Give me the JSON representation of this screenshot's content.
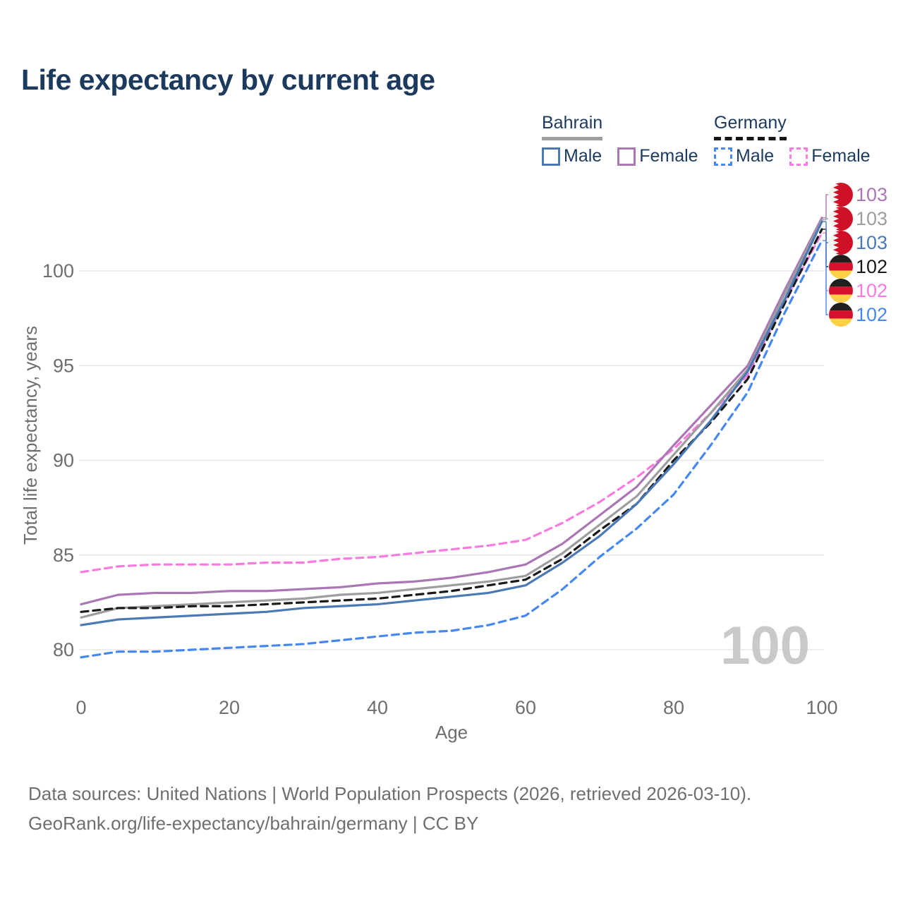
{
  "title": "Life expectancy by current age",
  "legend": {
    "bahrain": {
      "label": "Bahrain",
      "male": "Male",
      "female": "Female",
      "male_color": "#4a79b5",
      "female_color": "#aa77b4",
      "underline_color": "#9e9e9e"
    },
    "germany": {
      "label": "Germany",
      "male": "Male",
      "female": "Female",
      "male_color": "#4688f1",
      "female_color": "#fb7ae0",
      "underline_color": "#161616"
    }
  },
  "chart_data": {
    "type": "line",
    "x": [
      0,
      5,
      10,
      15,
      20,
      25,
      30,
      35,
      40,
      45,
      50,
      55,
      60,
      65,
      70,
      75,
      80,
      85,
      90,
      95,
      100
    ],
    "xlabel": "Age",
    "ylabel": "Total life expectancy, years",
    "xlim": [
      0,
      100
    ],
    "ylim": [
      78.5,
      103.5
    ],
    "xticks": [
      "0",
      "20",
      "40",
      "60",
      "80",
      "100"
    ],
    "yticks": [
      "80",
      "85",
      "90",
      "95",
      "100"
    ],
    "grid": "horizontal",
    "legend_position": "top-right",
    "watermark": "100",
    "series": [
      {
        "name": "Germany Female",
        "country": "Germany",
        "sex": "Female",
        "flag": "germany",
        "color": "#fb7ae0",
        "dashed": true,
        "end_label": "102",
        "end_row": 4,
        "values": [
          84.1,
          84.4,
          84.5,
          84.5,
          84.5,
          84.6,
          84.6,
          84.8,
          84.9,
          85.1,
          85.3,
          85.5,
          85.8,
          86.7,
          87.8,
          89.1,
          90.6,
          92.5,
          94.5,
          98.4,
          102.0
        ]
      },
      {
        "name": "Bahrain Female",
        "country": "Bahrain",
        "sex": "Female",
        "flag": "bahrain",
        "color": "#aa77b4",
        "dashed": false,
        "end_label": "103",
        "end_row": 0,
        "values": [
          82.4,
          82.9,
          83.0,
          83.0,
          83.1,
          83.1,
          83.2,
          83.3,
          83.5,
          83.6,
          83.8,
          84.1,
          84.5,
          85.6,
          87.1,
          88.6,
          90.8,
          92.9,
          95.0,
          99.0,
          102.8
        ]
      },
      {
        "name": "Bahrain Both sexes",
        "country": "Bahrain",
        "sex": "Both",
        "flag": "bahrain",
        "color": "#9e9e9e",
        "dashed": false,
        "end_label": "103",
        "end_row": 1,
        "values": [
          81.7,
          82.2,
          82.3,
          82.4,
          82.5,
          82.6,
          82.7,
          82.9,
          83.0,
          83.2,
          83.4,
          83.6,
          83.9,
          85.1,
          86.6,
          88.1,
          90.3,
          92.5,
          94.8,
          98.8,
          102.7
        ]
      },
      {
        "name": "Germany Both sexes",
        "country": "Germany",
        "sex": "Both",
        "flag": "germany",
        "color": "#1a1a1a",
        "dashed": true,
        "end_label": "102",
        "end_row": 3,
        "values": [
          82.0,
          82.2,
          82.2,
          82.3,
          82.3,
          82.4,
          82.5,
          82.6,
          82.7,
          82.9,
          83.1,
          83.4,
          83.7,
          84.8,
          86.3,
          87.7,
          90.0,
          92.0,
          94.3,
          98.3,
          102.2
        ]
      },
      {
        "name": "Bahrain Male",
        "country": "Bahrain",
        "sex": "Male",
        "flag": "bahrain",
        "color": "#4a79b5",
        "dashed": false,
        "end_label": "103",
        "end_row": 2,
        "values": [
          81.3,
          81.6,
          81.7,
          81.8,
          81.9,
          82.0,
          82.2,
          82.3,
          82.4,
          82.6,
          82.8,
          83.0,
          83.4,
          84.6,
          86.0,
          87.7,
          89.8,
          92.1,
          94.7,
          98.5,
          102.6
        ]
      },
      {
        "name": "Germany Male",
        "country": "Germany",
        "sex": "Male",
        "flag": "germany",
        "color": "#4688f1",
        "dashed": true,
        "end_label": "102",
        "end_row": 5,
        "values": [
          79.6,
          79.9,
          79.9,
          80.0,
          80.1,
          80.2,
          80.3,
          80.5,
          80.7,
          80.9,
          81.0,
          81.3,
          81.8,
          83.2,
          84.9,
          86.4,
          88.2,
          90.8,
          93.6,
          97.8,
          101.6
        ]
      }
    ]
  },
  "footer": {
    "line1": "Data sources: United Nations | World Population Prospects (2026, retrieved 2026-03-10).",
    "line2": "GeoRank.org/life-expectancy/bahrain/germany | CC BY"
  }
}
